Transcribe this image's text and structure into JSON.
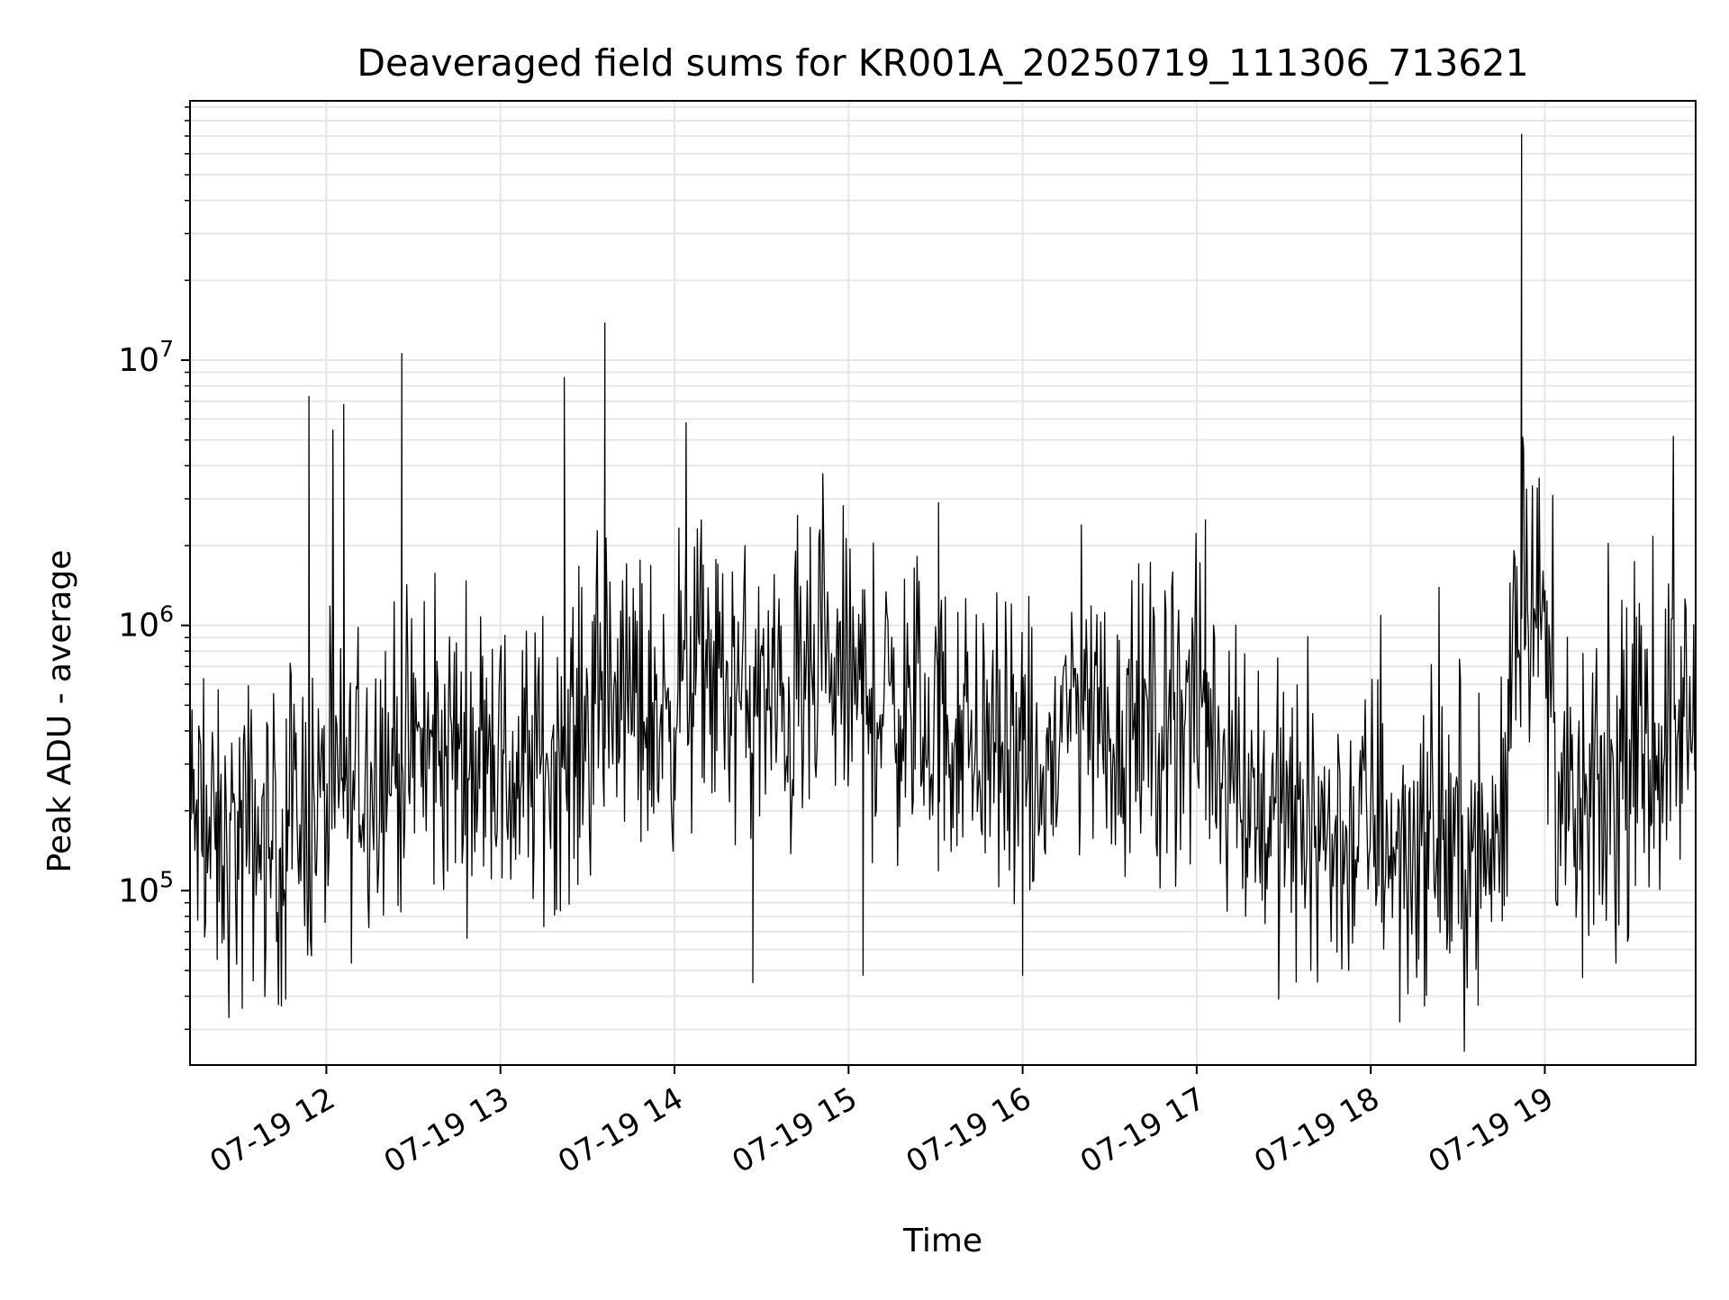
{
  "chart_data": {
    "type": "line",
    "title": "Deaveraged field sums for KR001A_20250719_111306_713621",
    "xlabel": "Time",
    "ylabel": "Peak ADU - average",
    "yscale": "log",
    "ylim": [
      22000,
      95000000
    ],
    "xlim": [
      "2025-07-19T11:13:00",
      "2025-07-19T19:52:00"
    ],
    "grid": true,
    "x_ticks": [
      "07-19 12",
      "07-19 13",
      "07-19 14",
      "07-19 15",
      "07-19 16",
      "07-19 17",
      "07-19 18",
      "07-19 19"
    ],
    "x_tick_times": [
      "2025-07-19T12:00:00",
      "2025-07-19T13:00:00",
      "2025-07-19T14:00:00",
      "2025-07-19T15:00:00",
      "2025-07-19T16:00:00",
      "2025-07-19T17:00:00",
      "2025-07-19T18:00:00",
      "2025-07-19T19:00:00"
    ],
    "y_ticks": [
      {
        "base": "10",
        "exp": "5",
        "value": 100000
      },
      {
        "base": "10",
        "exp": "6",
        "value": 1000000
      },
      {
        "base": "10",
        "exp": "7",
        "value": 10000000
      }
    ],
    "line_color": "#000000",
    "grid_color": "#e6e6e6",
    "series": [
      {
        "x": [
          "2025-07-19T11:15:00",
          "2025-07-19T11:20:00",
          "2025-07-19T11:25:00",
          "2025-07-19T11:30:00",
          "2025-07-19T11:35:00",
          "2025-07-19T11:40:00",
          "2025-07-19T11:45:00",
          "2025-07-19T11:50:00",
          "2025-07-19T11:55:00",
          "2025-07-19T12:00:00",
          "2025-07-19T12:05:00",
          "2025-07-19T12:10:00",
          "2025-07-19T12:15:00",
          "2025-07-19T12:20:00",
          "2025-07-19T12:25:00",
          "2025-07-19T12:30:00",
          "2025-07-19T12:35:00",
          "2025-07-19T12:40:00",
          "2025-07-19T12:45:00",
          "2025-07-19T12:50:00",
          "2025-07-19T12:55:00",
          "2025-07-19T13:00:00",
          "2025-07-19T13:05:00",
          "2025-07-19T13:10:00",
          "2025-07-19T13:15:00",
          "2025-07-19T13:20:00",
          "2025-07-19T13:25:00",
          "2025-07-19T13:30:00",
          "2025-07-19T13:35:00",
          "2025-07-19T13:40:00",
          "2025-07-19T13:45:00",
          "2025-07-19T13:50:00",
          "2025-07-19T13:55:00",
          "2025-07-19T14:00:00",
          "2025-07-19T14:05:00",
          "2025-07-19T14:10:00",
          "2025-07-19T14:15:00",
          "2025-07-19T14:20:00",
          "2025-07-19T14:25:00",
          "2025-07-19T14:30:00",
          "2025-07-19T14:35:00",
          "2025-07-19T14:40:00",
          "2025-07-19T14:45:00",
          "2025-07-19T14:50:00",
          "2025-07-19T14:55:00",
          "2025-07-19T15:00:00",
          "2025-07-19T15:05:00",
          "2025-07-19T15:10:00",
          "2025-07-19T15:15:00",
          "2025-07-19T15:20:00",
          "2025-07-19T15:25:00",
          "2025-07-19T15:30:00",
          "2025-07-19T15:35:00",
          "2025-07-19T15:40:00",
          "2025-07-19T15:45:00",
          "2025-07-19T15:50:00",
          "2025-07-19T15:55:00",
          "2025-07-19T16:00:00",
          "2025-07-19T16:05:00",
          "2025-07-19T16:10:00",
          "2025-07-19T16:15:00",
          "2025-07-19T16:20:00",
          "2025-07-19T16:25:00",
          "2025-07-19T16:30:00",
          "2025-07-19T16:35:00",
          "2025-07-19T16:40:00",
          "2025-07-19T16:45:00",
          "2025-07-19T16:50:00",
          "2025-07-19T16:55:00",
          "2025-07-19T17:00:00",
          "2025-07-19T17:05:00",
          "2025-07-19T17:10:00",
          "2025-07-19T17:15:00",
          "2025-07-19T17:20:00",
          "2025-07-19T17:25:00",
          "2025-07-19T17:30:00",
          "2025-07-19T17:35:00",
          "2025-07-19T17:40:00",
          "2025-07-19T17:45:00",
          "2025-07-19T17:50:00",
          "2025-07-19T17:55:00",
          "2025-07-19T18:00:00",
          "2025-07-19T18:05:00",
          "2025-07-19T18:10:00",
          "2025-07-19T18:15:00",
          "2025-07-19T18:20:00",
          "2025-07-19T18:25:00",
          "2025-07-19T18:30:00",
          "2025-07-19T18:35:00",
          "2025-07-19T18:40:00",
          "2025-07-19T18:45:00",
          "2025-07-19T18:50:00",
          "2025-07-19T18:55:00",
          "2025-07-19T19:00:00",
          "2025-07-19T19:05:00",
          "2025-07-19T19:10:00",
          "2025-07-19T19:15:00",
          "2025-07-19T19:20:00",
          "2025-07-19T19:25:00",
          "2025-07-19T19:30:00",
          "2025-07-19T19:35:00",
          "2025-07-19T19:40:00",
          "2025-07-19T19:45:00",
          "2025-07-19T19:50:00"
        ],
        "values": [
          180000,
          150000,
          130000,
          160000,
          170000,
          140000,
          160000,
          200000,
          190000,
          210000,
          230000,
          250000,
          290000,
          330000,
          310000,
          280000,
          300000,
          320000,
          360000,
          330000,
          340000,
          280000,
          260000,
          290000,
          310000,
          330000,
          360000,
          420000,
          480000,
          560000,
          520000,
          480000,
          420000,
          570000,
          640000,
          680000,
          600000,
          550000,
          530000,
          510000,
          480000,
          470000,
          520000,
          600000,
          620000,
          610000,
          560000,
          520000,
          500000,
          470000,
          440000,
          410000,
          400000,
          370000,
          350000,
          330000,
          310000,
          260000,
          230000,
          280000,
          480000,
          510000,
          470000,
          400000,
          390000,
          420000,
          400000,
          440000,
          480000,
          460000,
          400000,
          300000,
          260000,
          230000,
          200000,
          190000,
          170000,
          180000,
          160000,
          150000,
          160000,
          190000,
          170000,
          140000,
          150000,
          160000,
          150000,
          140000,
          130000,
          135000,
          150000,
          1300000,
          1600000,
          900000,
          230000,
          170000,
          190000,
          210000,
          240000,
          270000,
          310000,
          380000,
          420000,
          440000
        ],
        "spikes": [
          {
            "x": "2025-07-19T11:54:00",
            "y": 7300000
          },
          {
            "x": "2025-07-19T12:06:00",
            "y": 6800000
          },
          {
            "x": "2025-07-19T12:26:00",
            "y": 10600000
          },
          {
            "x": "2025-07-19T13:22:00",
            "y": 8600000
          },
          {
            "x": "2025-07-19T13:36:00",
            "y": 13800000
          },
          {
            "x": "2025-07-19T14:04:00",
            "y": 5800000
          },
          {
            "x": "2025-07-19T15:31:00",
            "y": 2900000
          },
          {
            "x": "2025-07-19T17:03:00",
            "y": 2500000
          },
          {
            "x": "2025-07-19T18:52:00",
            "y": 71000000
          }
        ],
        "dips": [
          {
            "x": "2025-07-19T11:31:00",
            "y": 36000
          },
          {
            "x": "2025-07-19T11:46:00",
            "y": 39000
          },
          {
            "x": "2025-07-19T14:27:00",
            "y": 45000
          },
          {
            "x": "2025-07-19T15:05:00",
            "y": 48000
          },
          {
            "x": "2025-07-19T16:00:00",
            "y": 48000
          },
          {
            "x": "2025-07-19T18:10:00",
            "y": 32000
          },
          {
            "x": "2025-07-19T18:37:00",
            "y": 37000
          },
          {
            "x": "2025-07-19T19:13:00",
            "y": 47000
          }
        ]
      }
    ]
  }
}
